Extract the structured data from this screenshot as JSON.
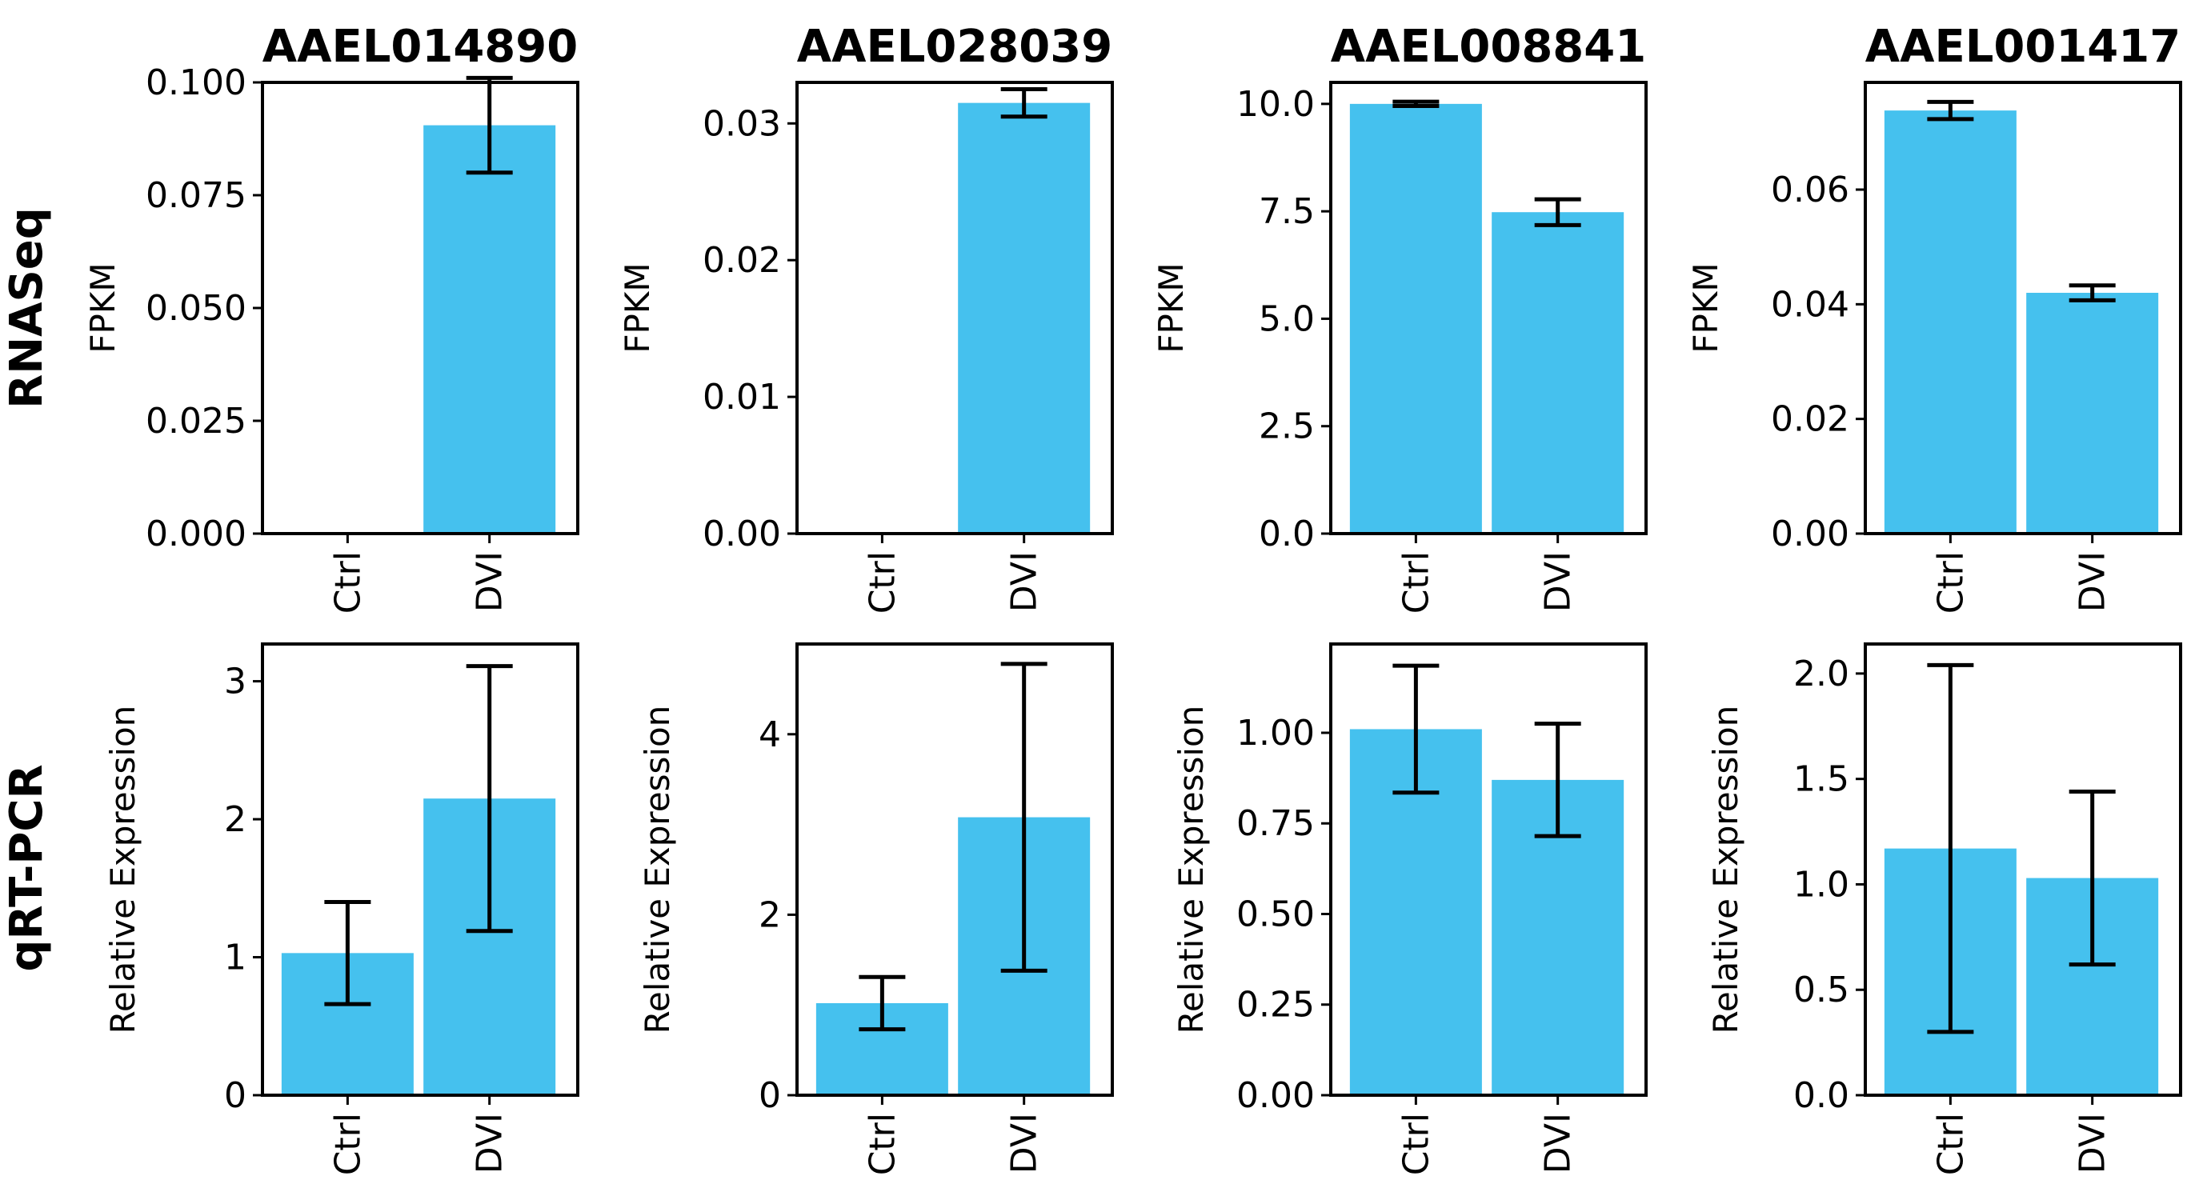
{
  "row_labels": [
    "RNASeq",
    "qRT-PCR"
  ],
  "colors": {
    "bar": "#45c1ee",
    "axis": "#000000"
  },
  "chart_data": [
    {
      "type": "bar",
      "title": "AAEL014890",
      "xlabel": "",
      "ylabel": "FPKM",
      "categories": [
        "Ctrl",
        "DVI"
      ],
      "values": [
        0,
        0.0905
      ],
      "errors": [
        0,
        0.0105
      ],
      "ylim": [
        0,
        0.1
      ],
      "yticks": [
        0.0,
        0.025,
        0.05,
        0.075,
        0.1
      ],
      "ytick_labels": [
        "0.000",
        "0.025",
        "0.050",
        "0.075",
        "0.100"
      ]
    },
    {
      "type": "bar",
      "title": "AAEL028039",
      "xlabel": "",
      "ylabel": "FPKM",
      "categories": [
        "Ctrl",
        "DVI"
      ],
      "values": [
        0,
        0.0315
      ],
      "errors": [
        0,
        0.001
      ],
      "ylim": [
        0,
        0.033
      ],
      "yticks": [
        0.0,
        0.01,
        0.02,
        0.03
      ],
      "ytick_labels": [
        "0.00",
        "0.01",
        "0.02",
        "0.03"
      ]
    },
    {
      "type": "bar",
      "title": "AAEL008841",
      "xlabel": "",
      "ylabel": "FPKM",
      "categories": [
        "Ctrl",
        "DVI"
      ],
      "values": [
        10.0,
        7.48
      ],
      "errors": [
        0.05,
        0.3
      ],
      "ylim": [
        0,
        10.5
      ],
      "yticks": [
        0.0,
        2.5,
        5.0,
        7.5,
        10.0
      ],
      "ytick_labels": [
        "0.0",
        "2.5",
        "5.0",
        "7.5",
        "10.0"
      ]
    },
    {
      "type": "bar",
      "title": "AAEL001417",
      "xlabel": "",
      "ylabel": "FPKM",
      "categories": [
        "Ctrl",
        "DVI"
      ],
      "values": [
        0.0738,
        0.042
      ],
      "errors": [
        0.0015,
        0.0013
      ],
      "ylim": [
        0,
        0.0787
      ],
      "yticks": [
        0.0,
        0.02,
        0.04,
        0.06
      ],
      "ytick_labels": [
        "0.00",
        "0.02",
        "0.04",
        "0.06"
      ]
    },
    {
      "type": "bar",
      "title": "",
      "xlabel": "",
      "ylabel": "Relative Expression",
      "categories": [
        "Ctrl",
        "DVI"
      ],
      "values": [
        1.03,
        2.15
      ],
      "errors": [
        0.37,
        0.96
      ],
      "ylim": [
        0,
        3.27
      ],
      "yticks": [
        0,
        1,
        2,
        3
      ],
      "ytick_labels": [
        "0",
        "1",
        "2",
        "3"
      ]
    },
    {
      "type": "bar",
      "title": "",
      "xlabel": "",
      "ylabel": "Relative Expression",
      "categories": [
        "Ctrl",
        "DVI"
      ],
      "values": [
        1.02,
        3.08
      ],
      "errors": [
        0.29,
        1.7
      ],
      "ylim": [
        0,
        5.0
      ],
      "yticks": [
        0,
        2,
        4
      ],
      "ytick_labels": [
        "0",
        "2",
        "4"
      ]
    },
    {
      "type": "bar",
      "title": "",
      "xlabel": "",
      "ylabel": "Relative Expression",
      "categories": [
        "Ctrl",
        "DVI"
      ],
      "values": [
        1.01,
        0.87
      ],
      "errors": [
        0.175,
        0.155
      ],
      "ylim": [
        0,
        1.245
      ],
      "yticks": [
        0.0,
        0.25,
        0.5,
        0.75,
        1.0
      ],
      "ytick_labels": [
        "0.00",
        "0.25",
        "0.50",
        "0.75",
        "1.00"
      ]
    },
    {
      "type": "bar",
      "title": "",
      "xlabel": "",
      "ylabel": "Relative Expression",
      "categories": [
        "Ctrl",
        "DVI"
      ],
      "values": [
        1.17,
        1.03
      ],
      "errors": [
        0.87,
        0.41
      ],
      "ylim": [
        0,
        2.14
      ],
      "yticks": [
        0.0,
        0.5,
        1.0,
        1.5,
        2.0
      ],
      "ytick_labels": [
        "0.0",
        "0.5",
        "1.0",
        "1.5",
        "2.0"
      ]
    }
  ]
}
